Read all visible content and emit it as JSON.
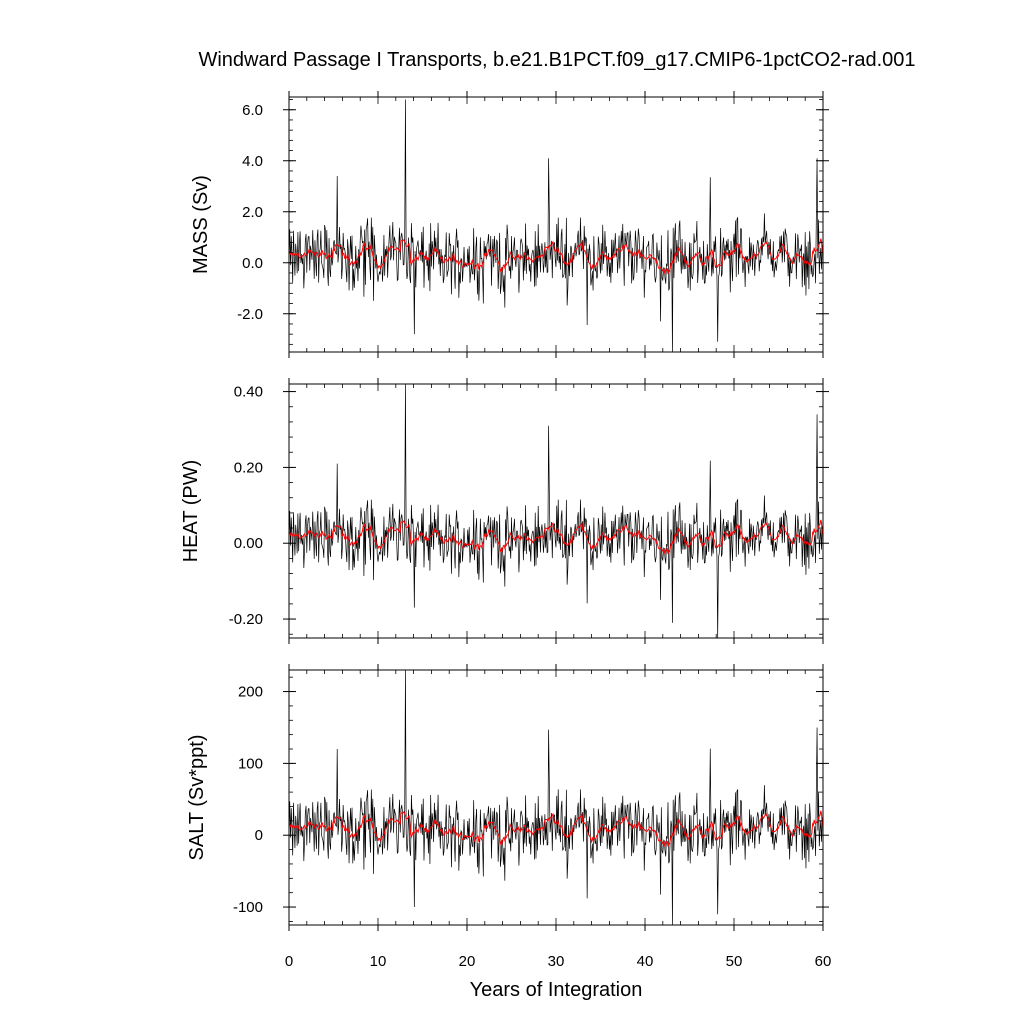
{
  "chart_data": {
    "type": "line",
    "title": "Windward Passage I Transports, b.e21.B1PCT.f09_g17.CMIP6-1pctCO2-rad.001",
    "xlabel": "Years of Integration",
    "xlim": [
      0,
      60
    ],
    "x_ticks": [
      0,
      10,
      20,
      30,
      40,
      50,
      60
    ],
    "x_tick_labels": [
      "0",
      "10",
      "20",
      "30",
      "40",
      "50",
      "60"
    ],
    "colors": {
      "monthly": "#000000",
      "smoothed": "#ff0000"
    },
    "panels": [
      {
        "id": "mass",
        "ylabel": "MASS (Sv)",
        "ylim": [
          -3.5,
          6.5
        ],
        "y_ticks": [
          -2.0,
          0.0,
          2.0,
          4.0,
          6.0
        ],
        "y_tick_labels": [
          "-2.0",
          "0.0",
          "2.0",
          "4.0",
          "6.0"
        ],
        "scale": 1.0,
        "series": [
          {
            "type": "monthly",
            "label_shown": false
          },
          {
            "type": "annual smoothed",
            "label_shown": false
          }
        ]
      },
      {
        "id": "heat",
        "ylabel": "HEAT (PW)",
        "ylim": [
          -0.25,
          0.42
        ],
        "y_ticks": [
          -0.2,
          0.0,
          0.2,
          0.4
        ],
        "y_tick_labels": [
          "-0.20",
          "0.00",
          "0.20",
          "0.40"
        ],
        "scale": 0.065
      },
      {
        "id": "salt",
        "ylabel": "SALT (Sv*ppt)",
        "ylim": [
          -125,
          230
        ],
        "y_ticks": [
          -100,
          0,
          100,
          200
        ],
        "y_tick_labels": [
          "-100",
          "0",
          "100",
          "200"
        ],
        "scale": 36.0
      }
    ],
    "spikes": [
      {
        "x": 5.4,
        "mass": 3.4,
        "heat": 0.21,
        "salt": 120
      },
      {
        "x": 13.1,
        "mass": 6.4,
        "heat": 0.42,
        "salt": 230
      },
      {
        "x": 14.1,
        "mass": -2.8,
        "heat": -0.17,
        "salt": -100
      },
      {
        "x": 29.2,
        "mass": 4.1,
        "heat": 0.31,
        "salt": 147
      },
      {
        "x": 43.1,
        "mass": -3.5,
        "heat": -0.21,
        "salt": -125
      },
      {
        "x": 48.2,
        "mass": -3.1,
        "heat": -0.25,
        "salt": -110
      },
      {
        "x": 59.3,
        "mass": 4.1,
        "heat": 0.34,
        "salt": 150
      }
    ],
    "annual_mean_mass": [
      0.1,
      0.3,
      0.5,
      0.2,
      0.3,
      0.4,
      0.0,
      0.1,
      0.6,
      0.5,
      0.3,
      0.4,
      0.6,
      0.5,
      0.2,
      0.1,
      0.3,
      0.0,
      0.1,
      0.2,
      0.4,
      0.1,
      0.3,
      0.2,
      0.0,
      0.1,
      0.3,
      0.0,
      0.6,
      0.5,
      0.5,
      0.3,
      0.6,
      0.4,
      0.1,
      0.2,
      0.1,
      0.5,
      0.3,
      0.2,
      0.4,
      0.1,
      0.0,
      0.4,
      0.1,
      0.3,
      0.2,
      0.4,
      0.3,
      0.2,
      0.5,
      0.3,
      0.4,
      0.7,
      0.5,
      0.4,
      0.2,
      0.0,
      0.2,
      0.4
    ]
  }
}
